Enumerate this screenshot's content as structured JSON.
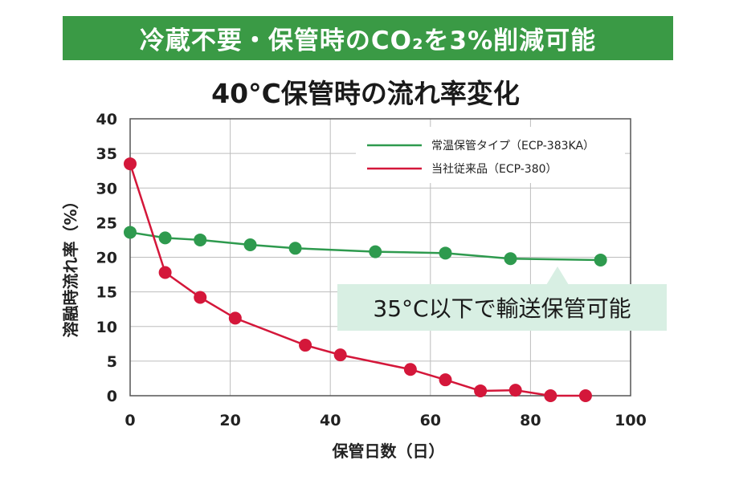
{
  "banner": {
    "text": "冷蔵不要・保管時のCO₂を3%削減可能",
    "color": "#3a9a45"
  },
  "chart_data": {
    "type": "line",
    "title": "40°C保管時の流れ率変化",
    "xlabel": "保管日数（日）",
    "ylabel": "溶融時流れ率（%）",
    "xlim": [
      0,
      100
    ],
    "ylim": [
      0,
      40
    ],
    "xticks": [
      0,
      20,
      40,
      60,
      80,
      100
    ],
    "yticks": [
      0,
      5,
      10,
      15,
      20,
      25,
      30,
      35,
      40
    ],
    "grid": true,
    "legend_position": "top-right",
    "series": [
      {
        "name": "常温保管タイプ（ECP-383KA）",
        "color": "#2e9a4e",
        "x": [
          0,
          7,
          14,
          24,
          33,
          49,
          63,
          76,
          94
        ],
        "y": [
          23.6,
          22.8,
          22.5,
          21.8,
          21.3,
          20.8,
          20.6,
          19.8,
          19.6
        ]
      },
      {
        "name": "当社従来品（ECP-380）",
        "color": "#d4173a",
        "x": [
          0,
          7,
          14,
          21,
          35,
          42,
          56,
          63,
          70,
          77,
          84,
          91
        ],
        "y": [
          33.5,
          17.8,
          14.2,
          11.2,
          7.3,
          5.9,
          3.8,
          2.3,
          0.7,
          0.8,
          0,
          0
        ]
      }
    ],
    "annotation": {
      "text": "35°C以下で輸送保管可能",
      "background": "#d8efe3"
    }
  }
}
